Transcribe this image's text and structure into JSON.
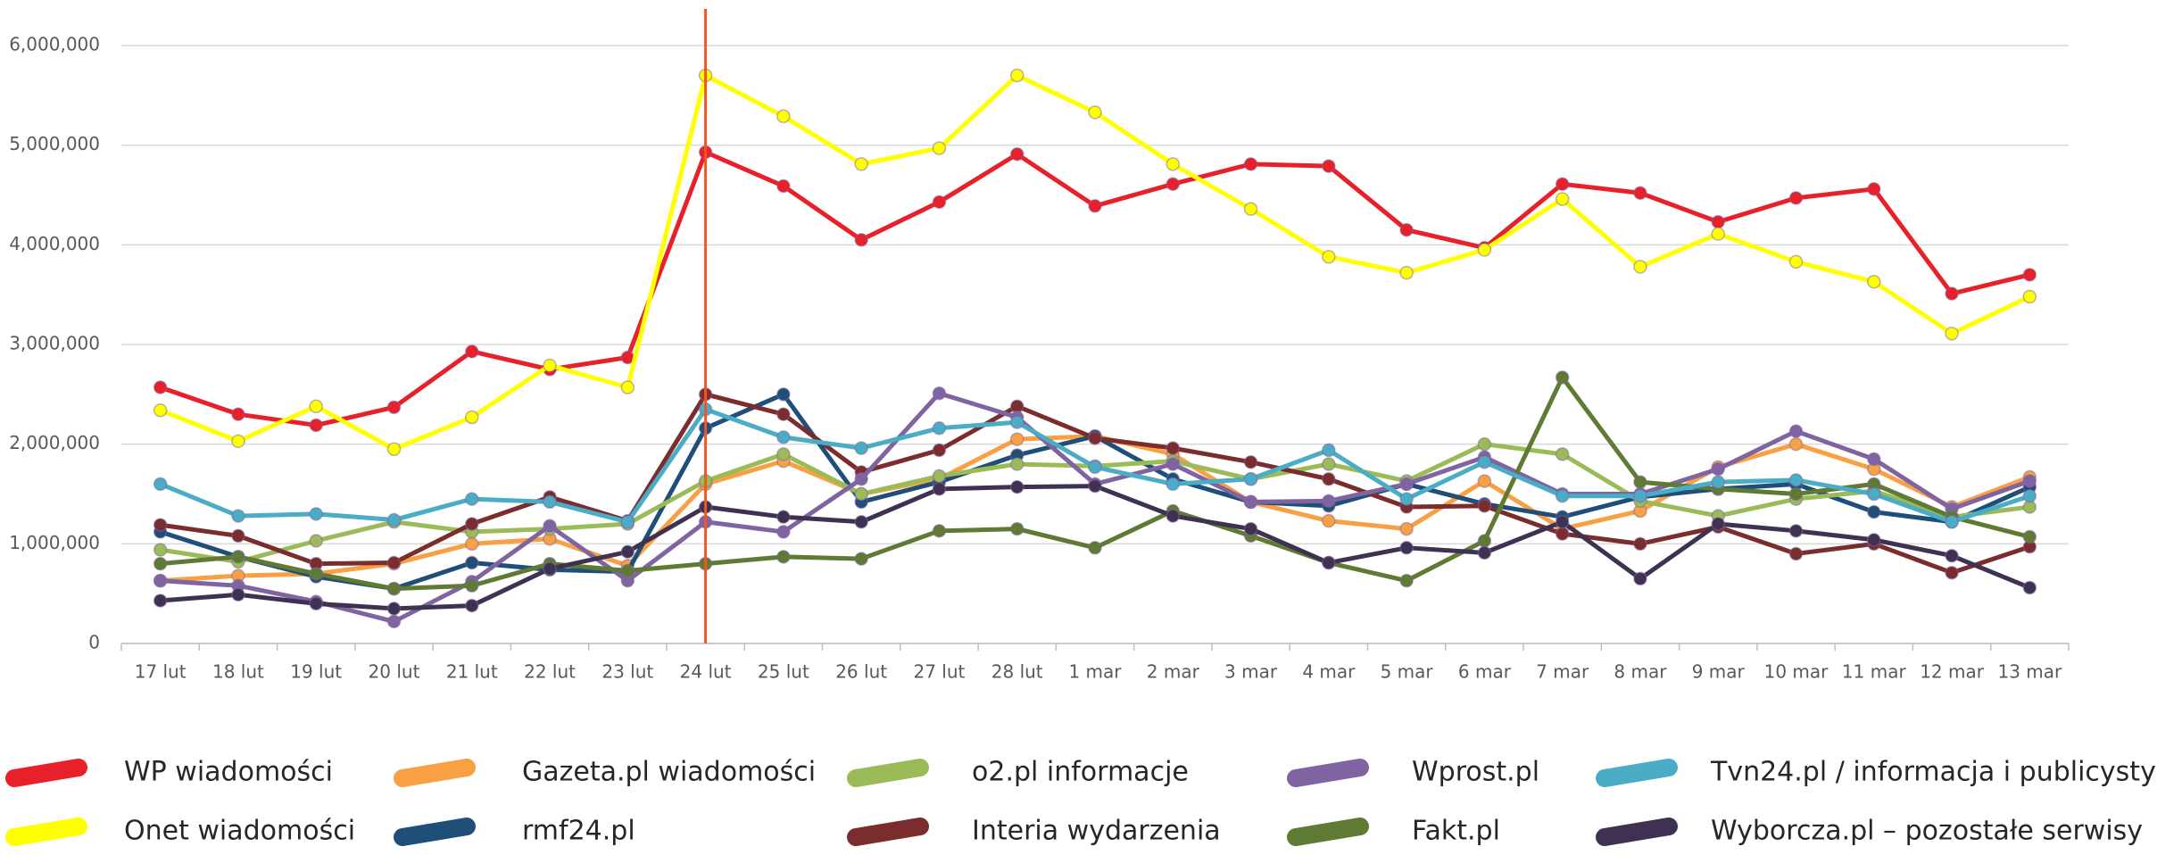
{
  "chart_data": {
    "type": "line",
    "categories": [
      "17 lut",
      "18 lut",
      "19 lut",
      "20 lut",
      "21 lut",
      "22 lut",
      "23 lut",
      "24 lut",
      "25 lut",
      "26 lut",
      "27 lut",
      "28 lut",
      "1 mar",
      "2 mar",
      "3 mar",
      "4 mar",
      "5 mar",
      "6 mar",
      "7 mar",
      "8 mar",
      "9 mar",
      "10 mar",
      "11 mar",
      "12 mar",
      "13 mar"
    ],
    "ylim": [
      0,
      6000000
    ],
    "yticks": [
      0,
      {
        "value": 1000000,
        "label": "1,000,000"
      },
      {
        "value": 2000000,
        "label": "2,000,000"
      },
      {
        "value": 3000000,
        "label": "3,000,000"
      },
      {
        "value": 4000000,
        "label": "4,000,000"
      },
      {
        "value": 5000000,
        "label": "5,000,000"
      },
      {
        "value": 6000000,
        "label": "6,000,000"
      }
    ],
    "grid": true,
    "legend": "bottom",
    "highlight_category": "24 lut",
    "highlight_color": "#f0561f",
    "series": [
      {
        "name": "WP wiadomości",
        "color": "#e8202a",
        "values": [
          2570000,
          2300000,
          2190000,
          2370000,
          2930000,
          2750000,
          2870000,
          4930000,
          4590000,
          4050000,
          4430000,
          4910000,
          4390000,
          4610000,
          4810000,
          4790000,
          4150000,
          3970000,
          4610000,
          4520000,
          4230000,
          4470000,
          4560000,
          3510000,
          3700000
        ]
      },
      {
        "name": "Onet wiadomości",
        "color": "#ffff00",
        "values": [
          2340000,
          2030000,
          2380000,
          1950000,
          2270000,
          2790000,
          2570000,
          5700000,
          5290000,
          4810000,
          4970000,
          5700000,
          5330000,
          4810000,
          4360000,
          3880000,
          3720000,
          3950000,
          4460000,
          3780000,
          4110000,
          3830000,
          3630000,
          3110000,
          3480000
        ]
      },
      {
        "name": "Gazeta.pl wiadomości",
        "color": "#f8a043",
        "values": [
          630000,
          680000,
          700000,
          800000,
          1000000,
          1050000,
          780000,
          1600000,
          1830000,
          1500000,
          1650000,
          2050000,
          2080000,
          1900000,
          1420000,
          1230000,
          1150000,
          1630000,
          1150000,
          1330000,
          1770000,
          2000000,
          1750000,
          1370000,
          1670000
        ]
      },
      {
        "name": "rmf24.pl",
        "color": "#1f4e79",
        "values": [
          1120000,
          870000,
          670000,
          550000,
          810000,
          740000,
          720000,
          2160000,
          2500000,
          1420000,
          1620000,
          1890000,
          2080000,
          1650000,
          1420000,
          1380000,
          1600000,
          1400000,
          1270000,
          1470000,
          1550000,
          1600000,
          1320000,
          1220000,
          1570000
        ]
      },
      {
        "name": "o2.pl informacje",
        "color": "#9bbb59",
        "values": [
          940000,
          820000,
          1030000,
          1220000,
          1120000,
          1150000,
          1200000,
          1630000,
          1900000,
          1500000,
          1680000,
          1800000,
          1780000,
          1830000,
          1650000,
          1800000,
          1630000,
          2000000,
          1900000,
          1430000,
          1280000,
          1450000,
          1530000,
          1270000,
          1370000
        ]
      },
      {
        "name": "Interia wydarzenia",
        "color": "#7b2c2c",
        "values": [
          1190000,
          1080000,
          800000,
          810000,
          1200000,
          1470000,
          1230000,
          2500000,
          2300000,
          1720000,
          1940000,
          2380000,
          2060000,
          1960000,
          1820000,
          1650000,
          1370000,
          1380000,
          1100000,
          1000000,
          1170000,
          900000,
          1000000,
          710000,
          970000
        ]
      },
      {
        "name": "Wprost.pl",
        "color": "#8064a2",
        "values": [
          630000,
          580000,
          420000,
          220000,
          620000,
          1180000,
          630000,
          1220000,
          1120000,
          1650000,
          2510000,
          2270000,
          1600000,
          1800000,
          1420000,
          1430000,
          1600000,
          1870000,
          1500000,
          1500000,
          1750000,
          2130000,
          1850000,
          1350000,
          1630000
        ]
      },
      {
        "name": "Fakt.pl",
        "color": "#5e7a33",
        "values": [
          800000,
          870000,
          700000,
          550000,
          580000,
          800000,
          730000,
          800000,
          870000,
          850000,
          1130000,
          1150000,
          960000,
          1330000,
          1080000,
          810000,
          630000,
          1030000,
          2670000,
          1620000,
          1550000,
          1500000,
          1600000,
          1270000,
          1070000
        ]
      },
      {
        "name": "Tvn24.pl / informacja i publicystyka",
        "color": "#4bacc6",
        "values": [
          1600000,
          1280000,
          1300000,
          1240000,
          1450000,
          1420000,
          1220000,
          2350000,
          2070000,
          1960000,
          2160000,
          2220000,
          1770000,
          1600000,
          1650000,
          1940000,
          1450000,
          1820000,
          1480000,
          1480000,
          1620000,
          1640000,
          1500000,
          1220000,
          1480000
        ]
      },
      {
        "name": "Wyborcza.pl – pozostałe serwisy",
        "color": "#3f3151",
        "values": [
          430000,
          490000,
          400000,
          350000,
          380000,
          750000,
          920000,
          1370000,
          1270000,
          1220000,
          1550000,
          1570000,
          1580000,
          1280000,
          1150000,
          810000,
          960000,
          910000,
          1220000,
          650000,
          1200000,
          1130000,
          1040000,
          880000,
          560000
        ]
      }
    ]
  }
}
